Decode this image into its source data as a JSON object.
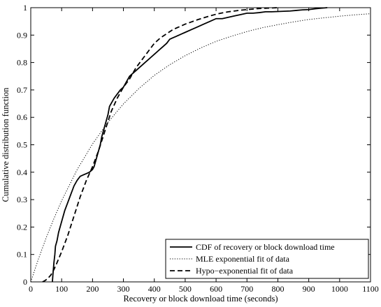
{
  "chart_data": {
    "type": "line",
    "xlabel": "Recovery or block download time (seconds)",
    "ylabel": "Cumulative distribution function",
    "xlim": [
      0,
      1100
    ],
    "ylim": [
      0,
      1
    ],
    "xticks": [
      0,
      100,
      200,
      300,
      400,
      500,
      600,
      700,
      800,
      900,
      1000,
      1100
    ],
    "yticks": [
      0,
      0.1,
      0.2,
      0.3,
      0.4,
      0.5,
      0.6,
      0.7,
      0.8,
      0.9,
      1
    ],
    "xtick_labels": [
      "0",
      "100",
      "200",
      "300",
      "400",
      "500",
      "600",
      "700",
      "800",
      "900",
      "1000",
      "1100"
    ],
    "ytick_labels": [
      "0",
      "0.1",
      "0.2",
      "0.3",
      "0.4",
      "0.5",
      "0.6",
      "0.7",
      "0.8",
      "0.9",
      "1"
    ],
    "grid": false,
    "legend_position": "bottom-right",
    "series": [
      {
        "name": "CDF of recovery or block download time",
        "style": "solid",
        "color": "#000000",
        "x": [
          70,
          72,
          75,
          78,
          80,
          85,
          90,
          100,
          110,
          120,
          130,
          140,
          150,
          160,
          170,
          180,
          190,
          200,
          205,
          210,
          215,
          220,
          225,
          230,
          240,
          250,
          255,
          260,
          270,
          280,
          290,
          300,
          310,
          320,
          330,
          340,
          350,
          360,
          370,
          380,
          390,
          400,
          410,
          420,
          430,
          440,
          450,
          460,
          470,
          480,
          490,
          500,
          520,
          540,
          560,
          580,
          600,
          620,
          640,
          660,
          680,
          700,
          720,
          740,
          760,
          780,
          800,
          820,
          840,
          860,
          880,
          900,
          920,
          940,
          960
        ],
        "y": [
          0.0,
          0.03,
          0.07,
          0.1,
          0.13,
          0.15,
          0.18,
          0.22,
          0.26,
          0.29,
          0.32,
          0.35,
          0.37,
          0.385,
          0.39,
          0.395,
          0.4,
          0.41,
          0.42,
          0.44,
          0.46,
          0.48,
          0.5,
          0.53,
          0.57,
          0.61,
          0.64,
          0.65,
          0.67,
          0.685,
          0.7,
          0.71,
          0.73,
          0.75,
          0.76,
          0.77,
          0.78,
          0.79,
          0.8,
          0.81,
          0.82,
          0.83,
          0.84,
          0.85,
          0.86,
          0.87,
          0.885,
          0.89,
          0.895,
          0.9,
          0.905,
          0.91,
          0.92,
          0.93,
          0.94,
          0.95,
          0.96,
          0.96,
          0.965,
          0.97,
          0.975,
          0.98,
          0.98,
          0.982,
          0.985,
          0.985,
          0.986,
          0.987,
          0.988,
          0.99,
          0.992,
          0.993,
          0.996,
          0.998,
          1.0
        ]
      },
      {
        "name": "MLE exponential fit of data",
        "style": "dotted",
        "color": "#000000",
        "x": [
          0,
          25,
          50,
          75,
          100,
          150,
          200,
          250,
          300,
          350,
          400,
          450,
          500,
          550,
          600,
          650,
          700,
          750,
          800,
          850,
          900,
          950,
          1000,
          1050,
          1100
        ],
        "y": [
          0.0,
          0.084,
          0.161,
          0.231,
          0.296,
          0.409,
          0.503,
          0.582,
          0.649,
          0.705,
          0.753,
          0.792,
          0.825,
          0.853,
          0.877,
          0.896,
          0.913,
          0.927,
          0.938,
          0.948,
          0.957,
          0.963,
          0.969,
          0.974,
          0.978
        ]
      },
      {
        "name": "Hypo−exponential fit of data",
        "style": "dashed",
        "color": "#000000",
        "x": [
          38,
          45,
          55,
          65,
          75,
          85,
          100,
          120,
          140,
          160,
          180,
          200,
          220,
          240,
          260,
          280,
          300,
          320,
          340,
          360,
          380,
          400,
          420,
          440,
          460,
          480,
          500,
          520,
          540,
          560,
          580,
          600,
          620,
          640,
          660,
          680,
          700,
          720,
          740,
          760,
          780,
          800
        ],
        "y": [
          0.0,
          0.004,
          0.012,
          0.025,
          0.045,
          0.07,
          0.11,
          0.17,
          0.24,
          0.31,
          0.37,
          0.42,
          0.48,
          0.55,
          0.62,
          0.67,
          0.71,
          0.74,
          0.78,
          0.81,
          0.84,
          0.87,
          0.89,
          0.905,
          0.92,
          0.93,
          0.94,
          0.948,
          0.956,
          0.963,
          0.97,
          0.976,
          0.981,
          0.985,
          0.988,
          0.991,
          0.993,
          0.995,
          0.997,
          0.998,
          0.999,
          1.0
        ]
      }
    ]
  }
}
